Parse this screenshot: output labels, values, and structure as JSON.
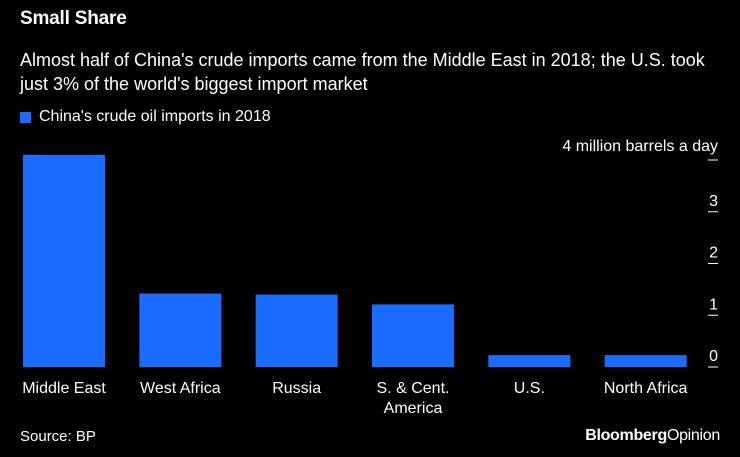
{
  "header": {
    "title": "Small Share",
    "subtitle": "Almost half of China's crude imports came from the Middle East in 2018; the U.S. took just 3% of the world's biggest import market"
  },
  "colors": {
    "background": "#000000",
    "bar": "#1a6bff",
    "text": "#ffffff"
  },
  "footer": {
    "source": "Source: BP",
    "brand_main": "Bloomberg",
    "brand_sub": "Opinion"
  },
  "chart_data": {
    "type": "bar",
    "title": "Small Share",
    "unit_label": "4 million barrels a day",
    "categories": [
      "Middle East",
      "West Africa",
      "Russia",
      "S. & Cent. America",
      "U.S.",
      "North Africa"
    ],
    "category_lines": [
      [
        "Middle East"
      ],
      [
        "West Africa"
      ],
      [
        "Russia"
      ],
      [
        "S. & Cent.",
        "America"
      ],
      [
        "U.S."
      ],
      [
        "North Africa"
      ]
    ],
    "series": [
      {
        "name": "China's crude oil imports in 2018",
        "values": [
          4.1,
          1.42,
          1.4,
          1.21,
          0.23,
          0.23
        ]
      }
    ],
    "ylim": [
      0,
      4
    ],
    "yticks": [
      0,
      1,
      2,
      3,
      4
    ],
    "ytick_labels": [
      "0",
      "1",
      "2",
      "3",
      ""
    ],
    "grid": false,
    "axis_position": "right",
    "legend_position": "top-left"
  }
}
